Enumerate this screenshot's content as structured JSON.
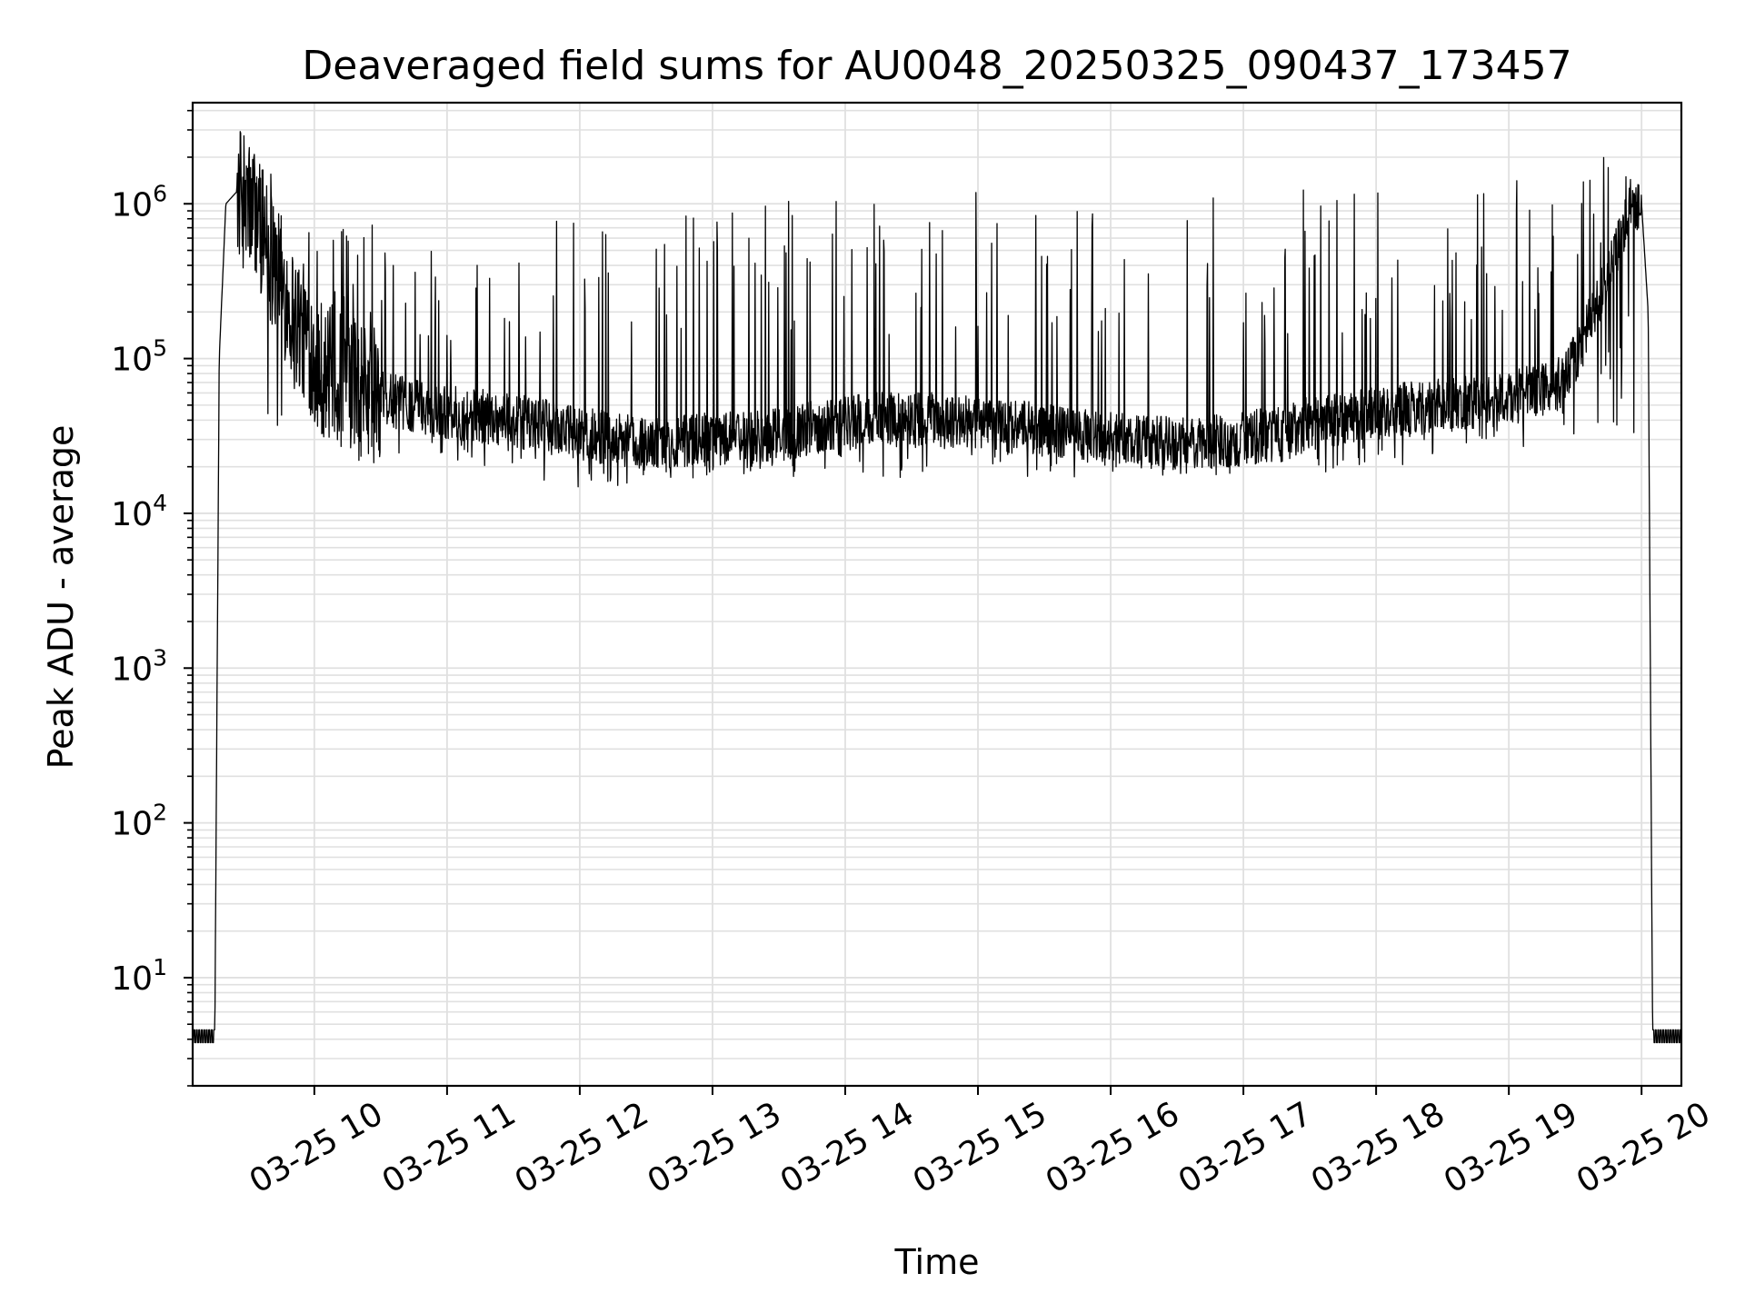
{
  "chart_data": {
    "type": "line",
    "title": "Deaveraged field sums for AU0048_20250325_090437_173457",
    "xlabel": "Time",
    "ylabel": "Peak ADU - average",
    "yscale": "log",
    "grid": true,
    "legend": "none",
    "line_color": "#000000",
    "grid_color": "#e0e0e0",
    "ylim": [
      2,
      4500000
    ],
    "xlim": [
      "2025-03-25 09:05",
      "2025-03-25 20:18"
    ],
    "y_ticks": [
      {
        "value": 10,
        "base": "10",
        "exp": "1"
      },
      {
        "value": 100,
        "base": "10",
        "exp": "2"
      },
      {
        "value": 1000,
        "base": "10",
        "exp": "3"
      },
      {
        "value": 10000,
        "base": "10",
        "exp": "4"
      },
      {
        "value": 100000,
        "base": "10",
        "exp": "5"
      },
      {
        "value": 1000000,
        "base": "10",
        "exp": "6"
      }
    ],
    "x_ticks": [
      {
        "value": "2025-03-25 10:00",
        "label": "03-25 10"
      },
      {
        "value": "2025-03-25 11:00",
        "label": "03-25 11"
      },
      {
        "value": "2025-03-25 12:00",
        "label": "03-25 12"
      },
      {
        "value": "2025-03-25 13:00",
        "label": "03-25 13"
      },
      {
        "value": "2025-03-25 14:00",
        "label": "03-25 14"
      },
      {
        "value": "2025-03-25 15:00",
        "label": "03-25 15"
      },
      {
        "value": "2025-03-25 16:00",
        "label": "03-25 16"
      },
      {
        "value": "2025-03-25 17:00",
        "label": "03-25 17"
      },
      {
        "value": "2025-03-25 18:00",
        "label": "03-25 18"
      },
      {
        "value": "2025-03-25 19:00",
        "label": "03-25 19"
      },
      {
        "value": "2025-03-25 20:00",
        "label": "03-25 20"
      }
    ],
    "series": [
      {
        "baseline": [
          {
            "x": "2025-03-25 09:05",
            "y": 4
          },
          {
            "x": "2025-03-25 09:15",
            "y": 4
          },
          {
            "x": "2025-03-25 09:17",
            "y": 100000
          },
          {
            "x": "2025-03-25 09:20",
            "y": 1000000
          },
          {
            "x": "2025-03-25 09:25",
            "y": 1200000
          },
          {
            "x": "2025-03-25 09:35",
            "y": 800000
          },
          {
            "x": "2025-03-25 09:50",
            "y": 200000
          },
          {
            "x": "2025-03-25 10:05",
            "y": 80000
          },
          {
            "x": "2025-03-25 10:30",
            "y": 55000
          },
          {
            "x": "2025-03-25 11:00",
            "y": 45000
          },
          {
            "x": "2025-03-25 11:30",
            "y": 40000
          },
          {
            "x": "2025-03-25 12:00",
            "y": 33000
          },
          {
            "x": "2025-03-25 12:30",
            "y": 28000
          },
          {
            "x": "2025-03-25 13:00",
            "y": 30000
          },
          {
            "x": "2025-03-25 13:30",
            "y": 32000
          },
          {
            "x": "2025-03-25 14:00",
            "y": 40000
          },
          {
            "x": "2025-03-25 14:30",
            "y": 42000
          },
          {
            "x": "2025-03-25 15:00",
            "y": 38000
          },
          {
            "x": "2025-03-25 15:30",
            "y": 35000
          },
          {
            "x": "2025-03-25 16:00",
            "y": 30000
          },
          {
            "x": "2025-03-25 16:30",
            "y": 28000
          },
          {
            "x": "2025-03-25 17:00",
            "y": 30000
          },
          {
            "x": "2025-03-25 17:30",
            "y": 38000
          },
          {
            "x": "2025-03-25 18:00",
            "y": 45000
          },
          {
            "x": "2025-03-25 18:30",
            "y": 50000
          },
          {
            "x": "2025-03-25 19:00",
            "y": 55000
          },
          {
            "x": "2025-03-25 19:25",
            "y": 70000
          },
          {
            "x": "2025-03-25 19:35",
            "y": 150000
          },
          {
            "x": "2025-03-25 19:45",
            "y": 350000
          },
          {
            "x": "2025-03-25 19:55",
            "y": 1000000
          },
          {
            "x": "2025-03-25 20:00",
            "y": 1000000
          },
          {
            "x": "2025-03-25 20:03",
            "y": 200000
          },
          {
            "x": "2025-03-25 20:05",
            "y": 4
          },
          {
            "x": "2025-03-25 20:18",
            "y": 4
          }
        ],
        "peak_envelope": [
          {
            "x": "2025-03-25 09:25",
            "y": 1500000
          },
          {
            "x": "2025-03-25 09:45",
            "y": 1800000
          },
          {
            "x": "2025-03-25 10:00",
            "y": 1200000
          },
          {
            "x": "2025-03-25 10:30",
            "y": 900000
          },
          {
            "x": "2025-03-25 11:00",
            "y": 700000
          },
          {
            "x": "2025-03-25 12:00",
            "y": 800000
          },
          {
            "x": "2025-03-25 13:00",
            "y": 1000000
          },
          {
            "x": "2025-03-25 14:00",
            "y": 1300000
          },
          {
            "x": "2025-03-25 15:00",
            "y": 1300000
          },
          {
            "x": "2025-03-25 16:00",
            "y": 1300000
          },
          {
            "x": "2025-03-25 17:00",
            "y": 1300000
          },
          {
            "x": "2025-03-25 18:00",
            "y": 1400000
          },
          {
            "x": "2025-03-25 19:00",
            "y": 1400000
          },
          {
            "x": "2025-03-25 19:55",
            "y": 2300000
          }
        ],
        "trough_envelope": [
          {
            "x": "2025-03-25 10:00",
            "y": 20000
          },
          {
            "x": "2025-03-25 11:00",
            "y": 20000
          },
          {
            "x": "2025-03-25 11:55",
            "y": 14000
          },
          {
            "x": "2025-03-25 13:00",
            "y": 17000
          },
          {
            "x": "2025-03-25 15:00",
            "y": 17000
          },
          {
            "x": "2025-03-25 17:00",
            "y": 17000
          },
          {
            "x": "2025-03-25 18:30",
            "y": 20000
          },
          {
            "x": "2025-03-25 19:30",
            "y": 30000
          }
        ]
      }
    ]
  }
}
